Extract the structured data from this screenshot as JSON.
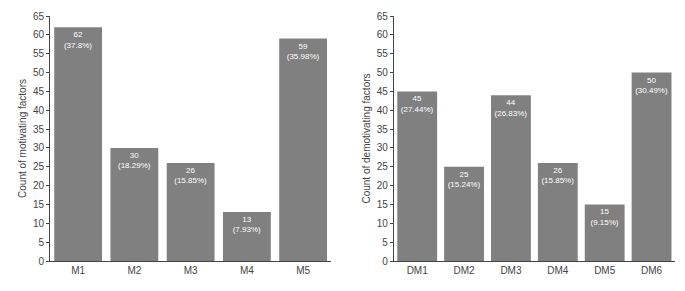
{
  "chart_data": [
    {
      "type": "bar",
      "categories": [
        "M1",
        "M2",
        "M3",
        "M4",
        "M5"
      ],
      "values": [
        62,
        30,
        26,
        13,
        59
      ],
      "value_labels": [
        "62\n(37.8%)",
        "30\n(18.29%)",
        "26\n(15.85%)",
        "13\n(7.93%)",
        "59\n(35.98%)"
      ],
      "data_labels": true,
      "ylabel": "Count of motivating factors",
      "ylim": [
        0,
        65
      ],
      "yticks": [
        0,
        5,
        10,
        15,
        20,
        25,
        30,
        35,
        40,
        45,
        50,
        55,
        60,
        65
      ],
      "color": "#808080",
      "grid": false
    },
    {
      "type": "bar",
      "categories": [
        "DM1",
        "DM2",
        "DM3",
        "DM4",
        "DM5",
        "DM6"
      ],
      "values": [
        45,
        25,
        44,
        26,
        15,
        50
      ],
      "value_labels": [
        "45\n(27.44%)",
        "25\n(15.24%)",
        "44\n(26.83%)",
        "26\n(15.85%)",
        "15\n(9.15%)",
        "50\n(30.49%)"
      ],
      "data_labels": true,
      "ylabel": "Count of demotivating factors",
      "ylim": [
        0,
        65
      ],
      "yticks": [
        0,
        5,
        10,
        15,
        20,
        25,
        30,
        35,
        40,
        45,
        50,
        55,
        60,
        65
      ],
      "color": "#808080",
      "grid": false
    }
  ]
}
